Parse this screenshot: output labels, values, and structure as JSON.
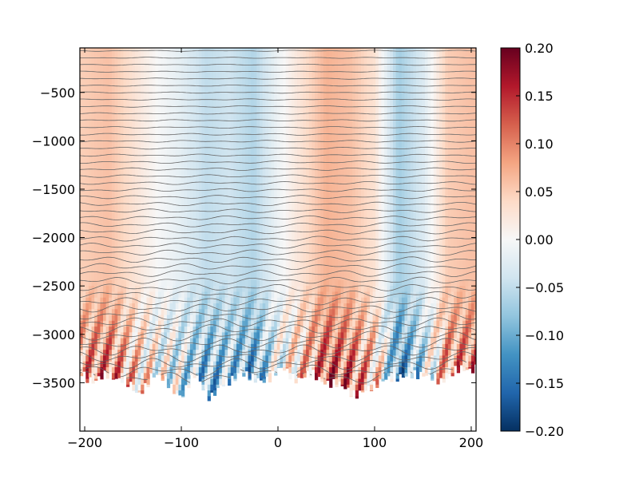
{
  "chart_data": {
    "type": "heatmap",
    "title": "",
    "xlabel": "",
    "ylabel": "",
    "xlim": [
      -205,
      205
    ],
    "ylim": [
      -4000,
      -40
    ],
    "x_ticks": [
      {
        "value": -200,
        "label": "−200"
      },
      {
        "value": -100,
        "label": "−100"
      },
      {
        "value": 0,
        "label": "0"
      },
      {
        "value": 100,
        "label": "100"
      },
      {
        "value": 200,
        "label": "200"
      }
    ],
    "y_ticks": [
      {
        "value": -500,
        "label": "−500"
      },
      {
        "value": -1000,
        "label": "−1000"
      },
      {
        "value": -1500,
        "label": "−1500"
      },
      {
        "value": -2000,
        "label": "−2000"
      },
      {
        "value": -2500,
        "label": "−2500"
      },
      {
        "value": -3000,
        "label": "−3000"
      },
      {
        "value": -3500,
        "label": "−3500"
      }
    ],
    "colorbar": {
      "colormap": "RdBu_r",
      "vmin": -0.2,
      "vmax": 0.2,
      "ticks": [
        {
          "value": 0.2,
          "label": "0.20"
        },
        {
          "value": 0.15,
          "label": "0.15"
        },
        {
          "value": 0.1,
          "label": "0.10"
        },
        {
          "value": 0.05,
          "label": "0.05"
        },
        {
          "value": 0.0,
          "label": "0.00"
        },
        {
          "value": -0.05,
          "label": "−0.05"
        },
        {
          "value": -0.1,
          "label": "−0.10"
        },
        {
          "value": -0.15,
          "label": "−0.15"
        },
        {
          "value": -0.2,
          "label": "−0.20"
        }
      ],
      "colors": [
        "#053061",
        "#2166ac",
        "#4393c3",
        "#92c5de",
        "#d1e5f0",
        "#f7f7f7",
        "#fddbc7",
        "#f4a582",
        "#d6604d",
        "#b2182b",
        "#67001f"
      ]
    },
    "column_values": [
      {
        "x": -200,
        "value": 0.05
      },
      {
        "x": -175,
        "value": 0.06
      },
      {
        "x": -150,
        "value": 0.03
      },
      {
        "x": -125,
        "value": 0.0
      },
      {
        "x": -100,
        "value": -0.02
      },
      {
        "x": -75,
        "value": -0.05
      },
      {
        "x": -50,
        "value": -0.04
      },
      {
        "x": -25,
        "value": -0.06
      },
      {
        "x": 0,
        "value": -0.01
      },
      {
        "x": 25,
        "value": 0.03
      },
      {
        "x": 50,
        "value": 0.07
      },
      {
        "x": 75,
        "value": 0.06
      },
      {
        "x": 100,
        "value": 0.03
      },
      {
        "x": 125,
        "value": -0.07
      },
      {
        "x": 150,
        "value": -0.03
      },
      {
        "x": 175,
        "value": 0.05
      },
      {
        "x": 200,
        "value": 0.06
      }
    ],
    "seafloor_depth": [
      {
        "x": -205,
        "depth": -3380
      },
      {
        "x": -190,
        "depth": -3480
      },
      {
        "x": -175,
        "depth": -3420
      },
      {
        "x": -160,
        "depth": -3450
      },
      {
        "x": -145,
        "depth": -3640
      },
      {
        "x": -130,
        "depth": -3400
      },
      {
        "x": -115,
        "depth": -3500
      },
      {
        "x": -100,
        "depth": -3630
      },
      {
        "x": -85,
        "depth": -3420
      },
      {
        "x": -70,
        "depth": -3640
      },
      {
        "x": -55,
        "depth": -3520
      },
      {
        "x": -40,
        "depth": -3380
      },
      {
        "x": -25,
        "depth": -3480
      },
      {
        "x": -10,
        "depth": -3440
      },
      {
        "x": 5,
        "depth": -3360
      },
      {
        "x": 20,
        "depth": -3450
      },
      {
        "x": 35,
        "depth": -3420
      },
      {
        "x": 50,
        "depth": -3480
      },
      {
        "x": 65,
        "depth": -3540
      },
      {
        "x": 80,
        "depth": -3600
      },
      {
        "x": 95,
        "depth": -3580
      },
      {
        "x": 110,
        "depth": -3430
      },
      {
        "x": 125,
        "depth": -3470
      },
      {
        "x": 140,
        "depth": -3380
      },
      {
        "x": 155,
        "depth": -3450
      },
      {
        "x": 170,
        "depth": -3460
      },
      {
        "x": 185,
        "depth": -3380
      },
      {
        "x": 205,
        "depth": -3330
      }
    ],
    "contour_count": 48,
    "contour_color": "#666666"
  }
}
